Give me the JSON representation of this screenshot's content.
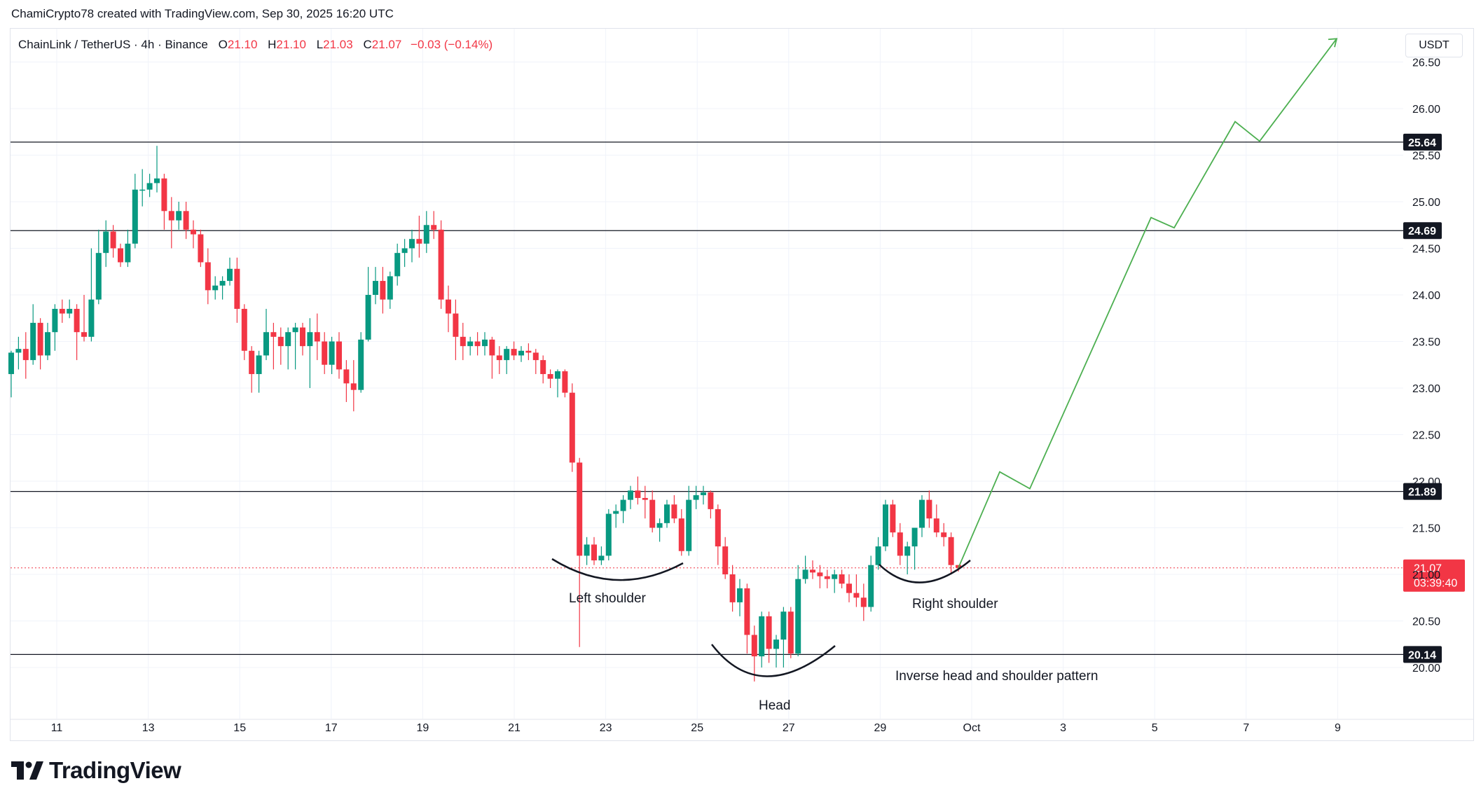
{
  "header": {
    "credit": "ChamiCrypto78 created with TradingView.com, Sep 30, 2025 16:20 UTC"
  },
  "legend": {
    "symbol": "ChainLink / TetherUS · 4h · Binance",
    "open_label": "O",
    "open": "21.10",
    "high_label": "H",
    "high": "21.10",
    "low_label": "L",
    "low": "21.03",
    "close_label": "C",
    "close": "21.07",
    "change": "−0.03 (−0.14%)"
  },
  "currency_button": "USDT",
  "brand": {
    "name": "TradingView",
    "logo_icon": "tradingview-logo-icon"
  },
  "colors": {
    "up": "#089981",
    "down": "#f23645",
    "projection": "#4caf50",
    "level_line": "#131722",
    "grid": "#f0f3fa"
  },
  "chart_data": {
    "type": "candlestick",
    "ylim": [
      19.7,
      26.9
    ],
    "yticks": [
      "20.00",
      "20.50",
      "21.00",
      "21.50",
      "22.00",
      "22.50",
      "23.00",
      "23.50",
      "24.00",
      "24.50",
      "25.00",
      "25.50",
      "26.00",
      "26.50"
    ],
    "xlabels": [
      "11",
      "13",
      "15",
      "17",
      "19",
      "21",
      "23",
      "25",
      "27",
      "29",
      "Oct",
      "3",
      "5",
      "7",
      "9"
    ],
    "levels": [
      {
        "value": 25.64,
        "label": "25.64"
      },
      {
        "value": 24.69,
        "label": "24.69"
      },
      {
        "value": 21.89,
        "label": "21.89"
      },
      {
        "value": 20.14,
        "label": "20.14"
      }
    ],
    "current_price": {
      "value": 21.07,
      "label": "21.07",
      "countdown": "03:39:40"
    },
    "candles": [
      [
        23.15,
        23.4,
        22.9,
        23.38
      ],
      [
        23.38,
        23.55,
        23.2,
        23.42
      ],
      [
        23.42,
        23.6,
        23.1,
        23.3
      ],
      [
        23.3,
        23.9,
        23.25,
        23.7
      ],
      [
        23.7,
        23.75,
        23.2,
        23.35
      ],
      [
        23.35,
        23.7,
        23.3,
        23.6
      ],
      [
        23.6,
        23.9,
        23.4,
        23.85
      ],
      [
        23.85,
        23.95,
        23.7,
        23.8
      ],
      [
        23.8,
        23.95,
        23.75,
        23.85
      ],
      [
        23.85,
        23.9,
        23.3,
        23.6
      ],
      [
        23.6,
        24.0,
        23.5,
        23.55
      ],
      [
        23.55,
        24.5,
        23.5,
        23.95
      ],
      [
        23.95,
        24.7,
        23.9,
        24.45
      ],
      [
        24.45,
        24.8,
        24.3,
        24.68
      ],
      [
        24.68,
        24.75,
        24.4,
        24.5
      ],
      [
        24.5,
        24.55,
        24.3,
        24.35
      ],
      [
        24.35,
        24.7,
        24.3,
        24.55
      ],
      [
        24.55,
        25.3,
        24.5,
        25.13
      ],
      [
        25.13,
        25.35,
        24.95,
        25.13
      ],
      [
        25.13,
        25.3,
        25.05,
        25.2
      ],
      [
        25.2,
        25.6,
        25.1,
        25.25
      ],
      [
        25.25,
        25.3,
        24.7,
        24.9
      ],
      [
        24.9,
        25.05,
        24.5,
        24.8
      ],
      [
        24.8,
        25.0,
        24.7,
        24.9
      ],
      [
        24.9,
        25.0,
        24.6,
        24.7
      ],
      [
        24.7,
        24.8,
        24.5,
        24.65
      ],
      [
        24.65,
        24.7,
        24.3,
        24.35
      ],
      [
        24.35,
        24.5,
        23.9,
        24.05
      ],
      [
        24.05,
        24.2,
        23.95,
        24.1
      ],
      [
        24.1,
        24.2,
        23.95,
        24.15
      ],
      [
        24.15,
        24.4,
        24.1,
        24.28
      ],
      [
        24.28,
        24.4,
        23.7,
        23.85
      ],
      [
        23.85,
        23.9,
        23.3,
        23.4
      ],
      [
        23.4,
        23.45,
        22.95,
        23.15
      ],
      [
        23.15,
        23.4,
        22.95,
        23.35
      ],
      [
        23.35,
        23.85,
        23.3,
        23.6
      ],
      [
        23.6,
        23.7,
        23.2,
        23.55
      ],
      [
        23.55,
        23.65,
        23.25,
        23.45
      ],
      [
        23.45,
        23.65,
        23.2,
        23.6
      ],
      [
        23.6,
        23.7,
        23.2,
        23.65
      ],
      [
        23.65,
        23.7,
        23.35,
        23.45
      ],
      [
        23.45,
        23.75,
        23.0,
        23.6
      ],
      [
        23.6,
        23.8,
        23.3,
        23.5
      ],
      [
        23.5,
        23.6,
        23.15,
        23.25
      ],
      [
        23.25,
        23.55,
        23.15,
        23.5
      ],
      [
        23.5,
        23.6,
        23.1,
        23.2
      ],
      [
        23.2,
        23.3,
        22.85,
        23.05
      ],
      [
        23.05,
        23.3,
        22.75,
        22.98
      ],
      [
        22.98,
        23.6,
        22.95,
        23.52
      ],
      [
        23.52,
        24.3,
        23.5,
        24.0
      ],
      [
        24.0,
        24.3,
        23.9,
        24.15
      ],
      [
        24.15,
        24.3,
        23.8,
        23.95
      ],
      [
        23.95,
        24.25,
        23.85,
        24.2
      ],
      [
        24.2,
        24.55,
        24.1,
        24.45
      ],
      [
        24.45,
        24.6,
        24.3,
        24.5
      ],
      [
        24.5,
        24.7,
        24.35,
        24.6
      ],
      [
        24.6,
        24.85,
        24.4,
        24.55
      ],
      [
        24.55,
        24.9,
        24.45,
        24.75
      ],
      [
        24.75,
        24.9,
        24.6,
        24.7
      ],
      [
        24.7,
        24.8,
        23.85,
        23.95
      ],
      [
        23.95,
        24.1,
        23.6,
        23.8
      ],
      [
        23.8,
        23.95,
        23.3,
        23.55
      ],
      [
        23.55,
        23.7,
        23.3,
        23.45
      ],
      [
        23.45,
        23.55,
        23.35,
        23.5
      ],
      [
        23.5,
        23.6,
        23.35,
        23.45
      ],
      [
        23.45,
        23.6,
        23.35,
        23.52
      ],
      [
        23.52,
        23.55,
        23.1,
        23.35
      ],
      [
        23.35,
        23.45,
        23.15,
        23.3
      ],
      [
        23.3,
        23.45,
        23.15,
        23.42
      ],
      [
        23.42,
        23.5,
        23.3,
        23.35
      ],
      [
        23.35,
        23.45,
        23.28,
        23.4
      ],
      [
        23.4,
        23.48,
        23.3,
        23.38
      ],
      [
        23.38,
        23.42,
        23.15,
        23.3
      ],
      [
        23.3,
        23.35,
        23.05,
        23.15
      ],
      [
        23.15,
        23.2,
        23.0,
        23.1
      ],
      [
        23.1,
        23.2,
        22.9,
        23.18
      ],
      [
        23.18,
        23.2,
        22.9,
        22.95
      ],
      [
        22.95,
        23.05,
        22.1,
        22.2
      ],
      [
        22.2,
        22.25,
        20.22,
        21.2
      ],
      [
        21.2,
        21.4,
        21.1,
        21.32
      ],
      [
        21.32,
        21.4,
        21.1,
        21.15
      ],
      [
        21.15,
        21.3,
        21.1,
        21.2
      ],
      [
        21.2,
        21.7,
        21.15,
        21.65
      ],
      [
        21.65,
        21.75,
        21.5,
        21.68
      ],
      [
        21.68,
        21.85,
        21.55,
        21.8
      ],
      [
        21.8,
        21.95,
        21.7,
        21.9
      ],
      [
        21.9,
        22.05,
        21.75,
        21.82
      ],
      [
        21.82,
        21.95,
        21.6,
        21.8
      ],
      [
        21.8,
        21.9,
        21.45,
        21.5
      ],
      [
        21.5,
        21.6,
        21.35,
        21.55
      ],
      [
        21.55,
        21.8,
        21.5,
        21.75
      ],
      [
        21.75,
        21.85,
        21.55,
        21.6
      ],
      [
        21.6,
        21.7,
        21.2,
        21.25
      ],
      [
        21.25,
        21.95,
        21.2,
        21.8
      ],
      [
        21.8,
        21.95,
        21.7,
        21.85
      ],
      [
        21.85,
        21.95,
        21.75,
        21.88
      ],
      [
        21.88,
        21.9,
        21.6,
        21.7
      ],
      [
        21.7,
        21.75,
        21.1,
        21.3
      ],
      [
        21.3,
        21.4,
        20.95,
        21.0
      ],
      [
        21.0,
        21.1,
        20.6,
        20.7
      ],
      [
        20.7,
        20.95,
        20.55,
        20.85
      ],
      [
        20.85,
        20.9,
        20.15,
        20.35
      ],
      [
        20.35,
        20.45,
        19.85,
        20.12
      ],
      [
        20.12,
        20.6,
        20.0,
        20.55
      ],
      [
        20.55,
        20.6,
        20.05,
        20.2
      ],
      [
        20.2,
        20.35,
        20.0,
        20.3
      ],
      [
        20.3,
        20.65,
        20.0,
        20.6
      ],
      [
        20.6,
        20.65,
        20.1,
        20.15
      ],
      [
        20.15,
        21.1,
        20.12,
        20.95
      ],
      [
        20.95,
        21.2,
        20.9,
        21.05
      ],
      [
        21.05,
        21.15,
        20.95,
        21.02
      ],
      [
        21.02,
        21.1,
        20.85,
        20.98
      ],
      [
        20.98,
        21.05,
        20.85,
        20.95
      ],
      [
        20.95,
        21.05,
        20.8,
        21.0
      ],
      [
        21.0,
        21.05,
        20.85,
        20.9
      ],
      [
        20.9,
        21.0,
        20.7,
        20.8
      ],
      [
        20.8,
        21.0,
        20.65,
        20.75
      ],
      [
        20.75,
        20.9,
        20.5,
        20.65
      ],
      [
        20.65,
        21.2,
        20.6,
        21.1
      ],
      [
        21.1,
        21.4,
        21.05,
        21.3
      ],
      [
        21.3,
        21.8,
        21.25,
        21.75
      ],
      [
        21.75,
        21.8,
        21.4,
        21.45
      ],
      [
        21.45,
        21.55,
        21.1,
        21.2
      ],
      [
        21.2,
        21.35,
        21.0,
        21.3
      ],
      [
        21.3,
        21.45,
        21.05,
        21.5
      ],
      [
        21.5,
        21.85,
        21.4,
        21.8
      ],
      [
        21.8,
        21.9,
        21.5,
        21.6
      ],
      [
        21.6,
        21.75,
        21.4,
        21.45
      ],
      [
        21.45,
        21.55,
        21.3,
        21.4
      ],
      [
        21.4,
        21.45,
        21.0,
        21.1
      ],
      [
        21.1,
        21.1,
        21.03,
        21.07
      ]
    ],
    "projection": [
      {
        "x": "Sep 30",
        "y": 21.07
      },
      {
        "x": "Oct 1",
        "y": 22.1
      },
      {
        "x": "Oct 2",
        "y": 21.92
      },
      {
        "x": "Oct 5",
        "y": 24.83
      },
      {
        "x": "Oct 5",
        "y": 24.72
      },
      {
        "x": "Oct 6",
        "y": 25.86
      },
      {
        "x": "Oct 7",
        "y": 25.65
      },
      {
        "x": "Oct 9",
        "y": 26.75
      }
    ],
    "annotations": [
      {
        "id": "left-shoulder",
        "text": "Left shoulder"
      },
      {
        "id": "head",
        "text": "Head"
      },
      {
        "id": "right-shoulder",
        "text": "Right shoulder"
      },
      {
        "id": "pattern",
        "text": "Inverse head and shoulder pattern"
      }
    ]
  }
}
